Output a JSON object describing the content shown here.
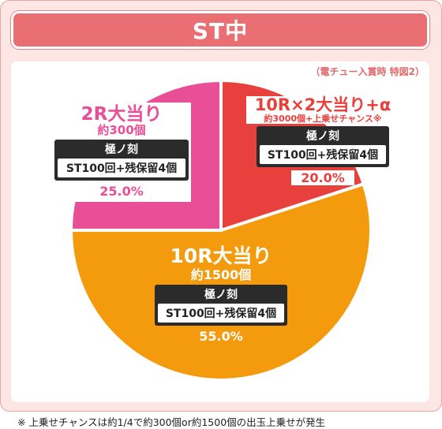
{
  "header": {
    "title": "ST中"
  },
  "source_note": "（電チュー入賞時 特図2）",
  "footer_note": "※ 上乗せチャンスは約1/4で約300個or約1500個の出玉上乗せが発生",
  "chart_data": {
    "type": "pie",
    "title": "ST中",
    "slices": [
      {
        "key": "r10x2",
        "name": "10R×2大当り+α",
        "count": "約3000個+上乗せチャンス※",
        "box_title": "極ノ刻",
        "box_detail": "ST100回+残保留4個",
        "percent_label": "20.0%",
        "value": 20.0,
        "color": "#e8403d",
        "text_color": "#e8403d"
      },
      {
        "key": "r10",
        "name": "10R大当り",
        "count": "約1500個",
        "box_title": "極ノ刻",
        "box_detail": "ST100回+残保留4個",
        "percent_label": "55.0%",
        "value": 55.0,
        "color": "#f39a0d",
        "text_color": "#ffffff"
      },
      {
        "key": "r2",
        "name": "2R大当り",
        "count": "約300個",
        "box_title": "極ノ刻",
        "box_detail": "ST100回+残保留4個",
        "percent_label": "25.0%",
        "value": 25.0,
        "color": "#e94f97",
        "text_color": "#e94f97"
      }
    ]
  }
}
